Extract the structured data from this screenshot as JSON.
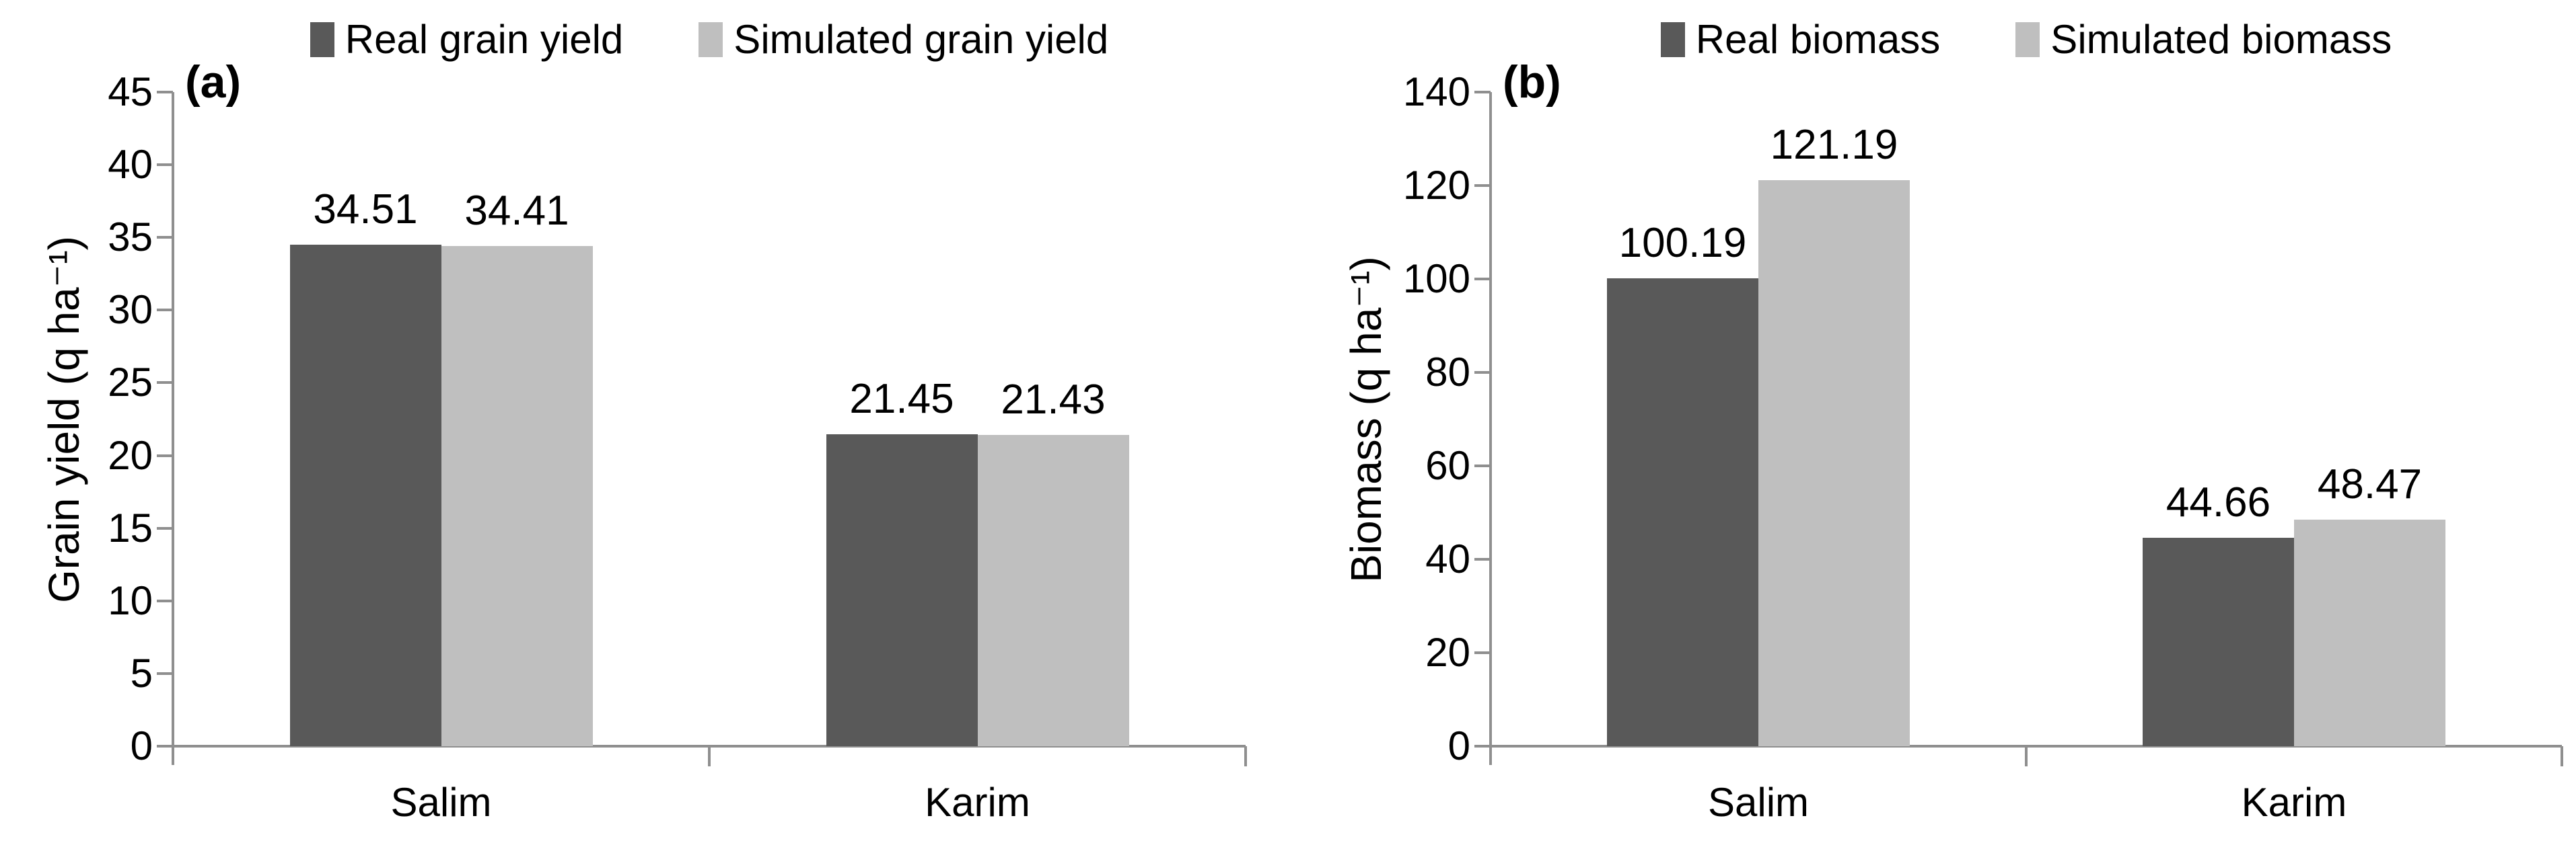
{
  "figure_type": "two-panel grouped bar chart",
  "colors": {
    "real_series": "#595959",
    "simulated_series": "#bfbfbf",
    "axis": "#8f8f8f",
    "text": "#000000",
    "background": "#ffffff"
  },
  "chart_data": [
    {
      "type": "bar",
      "panel_label": "(a)",
      "title": "",
      "xlabel": "",
      "ylabel": "Grain yield (q ha⁻¹)",
      "categories": [
        "Salim",
        "Karim"
      ],
      "series": [
        {
          "name": "Real grain yield",
          "color": "#595959",
          "values": [
            34.51,
            21.45
          ]
        },
        {
          "name": "Simulated grain yield",
          "color": "#bfbfbf",
          "values": [
            34.41,
            21.43
          ]
        }
      ],
      "data_labels": [
        [
          "34.51",
          "21.45"
        ],
        [
          "34.41",
          "21.43"
        ]
      ],
      "ylim": [
        0,
        45
      ],
      "ytick_step": 5,
      "yticks": [
        0,
        5,
        10,
        15,
        20,
        25,
        30,
        35,
        40,
        45
      ],
      "grid": false,
      "legend_position": "top-center"
    },
    {
      "type": "bar",
      "panel_label": "(b)",
      "title": "",
      "xlabel": "",
      "ylabel": "Biomass  (q ha⁻¹)",
      "categories": [
        "Salim",
        "Karim"
      ],
      "series": [
        {
          "name": "Real biomass",
          "color": "#595959",
          "values": [
            100.19,
            44.66
          ]
        },
        {
          "name": "Simulated biomass",
          "color": "#bfbfbf",
          "values": [
            121.19,
            48.47
          ]
        }
      ],
      "data_labels": [
        [
          "100.19",
          "44.66"
        ],
        [
          "121.19",
          "48.47"
        ]
      ],
      "ylim": [
        0,
        140
      ],
      "ytick_step": 20,
      "yticks": [
        0,
        20,
        40,
        60,
        80,
        100,
        120,
        140
      ],
      "grid": false,
      "legend_position": "top-center"
    }
  ]
}
